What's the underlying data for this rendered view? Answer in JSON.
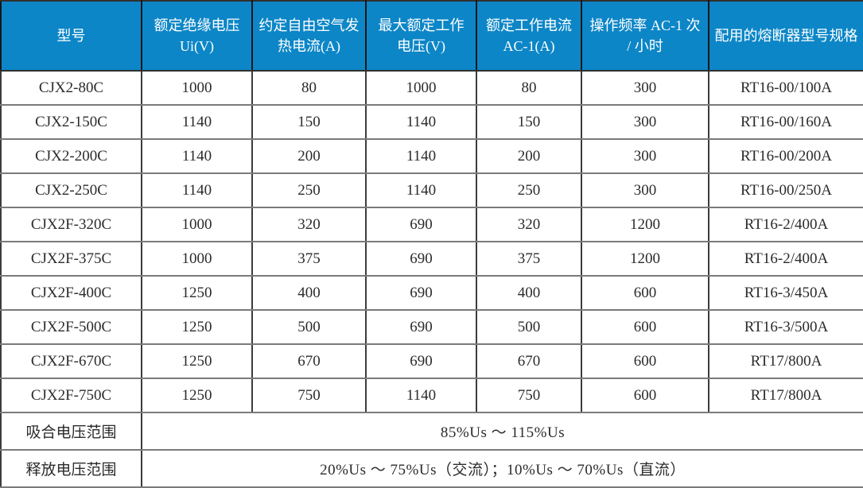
{
  "table": {
    "columns": [
      "型号",
      "额定绝缘电压 Ui(V)",
      "约定自由空气发热电流(A)",
      "最大额定工作电压(V)",
      "额定工作电流 AC-1(A)",
      "操作频率 AC-1 次 / 小时",
      "配用的熔断器型号规格"
    ],
    "rows": [
      [
        "CJX2-80C",
        "1000",
        "80",
        "1000",
        "80",
        "300",
        "RT16-00/100A"
      ],
      [
        "CJX2-150C",
        "1140",
        "150",
        "1140",
        "150",
        "300",
        "RT16-00/160A"
      ],
      [
        "CJX2-200C",
        "1140",
        "200",
        "1140",
        "200",
        "300",
        "RT16-00/200A"
      ],
      [
        "CJX2-250C",
        "1140",
        "250",
        "1140",
        "250",
        "300",
        "RT16-00/250A"
      ],
      [
        "CJX2F-320C",
        "1000",
        "320",
        "690",
        "320",
        "1200",
        "RT16-2/400A"
      ],
      [
        "CJX2F-375C",
        "1000",
        "375",
        "690",
        "375",
        "1200",
        "RT16-2/400A"
      ],
      [
        "CJX2F-400C",
        "1250",
        "400",
        "690",
        "400",
        "600",
        "RT16-3/450A"
      ],
      [
        "CJX2F-500C",
        "1250",
        "500",
        "690",
        "500",
        "600",
        "RT16-3/500A"
      ],
      [
        "CJX2F-670C",
        "1250",
        "670",
        "690",
        "670",
        "600",
        "RT17/800A"
      ],
      [
        "CJX2F-750C",
        "1250",
        "750",
        "1140",
        "750",
        "600",
        "RT17/800A"
      ]
    ],
    "footer_rows": [
      {
        "label": "吸合电压范围",
        "value": "85%Us ～ 115%Us"
      },
      {
        "label": "释放电压范围",
        "value": "20%Us ～ 75%Us（交流）；10%Us ～ 70%Us（直流）"
      }
    ]
  },
  "colors": {
    "header_bg": "#0c86c7",
    "header_text": "#ffffff",
    "body_text": "#2b2b2b",
    "grid_vertical": "#3c3c3c",
    "grid_horizontal": "#7a7a7a",
    "outer_border": "#303030"
  }
}
